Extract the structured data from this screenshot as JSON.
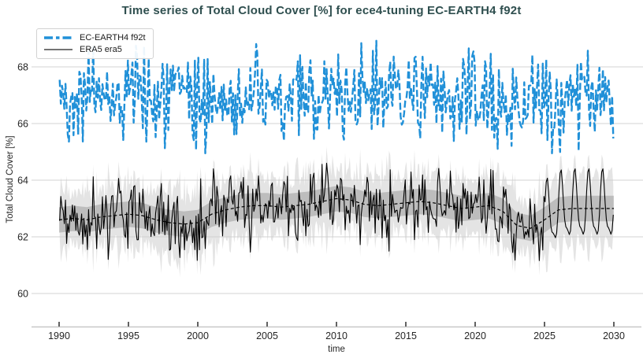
{
  "chart_data": {
    "type": "line",
    "title": "Time series of Total Cloud Cover [%] for ece4-tuning EC-EARTH4 f92t",
    "title_color": "#2F4F4F",
    "xlabel": "time",
    "ylabel": "Total Cloud Cover [%]",
    "xlim": [
      1988.0,
      2032.2
    ],
    "ylim": [
      58.8,
      69.5
    ],
    "x_ticks": [
      1990,
      1995,
      2000,
      2005,
      2010,
      2015,
      2020,
      2025,
      2030
    ],
    "x_tick_labels": [
      "1990",
      "1995",
      "2000",
      "2005",
      "2010",
      "2015",
      "2020",
      "2025",
      "2030"
    ],
    "y_ticks": [
      60,
      62,
      64,
      66,
      68
    ],
    "y_tick_labels": [
      "60",
      "62",
      "64",
      "66",
      "68"
    ],
    "grid": "horizontal",
    "grid_color": "#dcdcdc",
    "axis_line_color": "#c8c8c8",
    "tick_color": "#3a3a3a",
    "tick_label_color": "#262626",
    "legend": {
      "position": "upper-left",
      "entries": [
        {
          "label": "EC-EARTH4 f92t",
          "color": "#2090d8",
          "style": "dashed-thick"
        },
        {
          "label": "ERA5 era5",
          "color": "#000000",
          "style": "solid-thin"
        }
      ]
    },
    "series": [
      {
        "name": "EC-EARTH4 f92t",
        "color": "#2090d8",
        "line_style": "dashed",
        "line_width": 2.4,
        "frequency": "monthly",
        "x_start": 1990.0,
        "x_end": 2030.0,
        "mean": 66.9,
        "monthly_std": 0.8,
        "observed_range": [
          65.0,
          68.9
        ]
      },
      {
        "name": "ERA5 era5",
        "color": "#000000",
        "line_style": "solid",
        "line_width": 1.1,
        "frequency": "monthly",
        "x_start": 1990.0,
        "x_end": 2030.0,
        "monthly_std": 0.65,
        "observed_range": [
          60.7,
          64.6
        ],
        "running_mean_years": [
          1990,
          1991,
          1992,
          1993,
          1994,
          1995,
          1996,
          1997,
          1998,
          1999,
          2000,
          2001,
          2002,
          2003,
          2004,
          2005,
          2006,
          2007,
          2008,
          2009,
          2010,
          2011,
          2012,
          2013,
          2014,
          2015,
          2016,
          2017,
          2018,
          2019,
          2020,
          2021,
          2022,
          2023,
          2024,
          2025,
          2026,
          2027,
          2028,
          2029,
          2030
        ],
        "running_mean": [
          62.6,
          62.65,
          62.6,
          62.7,
          62.75,
          62.8,
          62.75,
          62.6,
          62.5,
          62.45,
          62.5,
          62.8,
          62.95,
          63.05,
          63.1,
          63.1,
          63.05,
          63.1,
          63.15,
          63.25,
          63.35,
          63.3,
          63.15,
          63.1,
          63.15,
          63.2,
          63.25,
          63.2,
          63.1,
          63.0,
          63.05,
          63.1,
          62.9,
          62.4,
          62.3,
          62.6,
          62.95,
          63.0,
          63.0,
          63.0,
          63.0
        ],
        "running_mean_style": "dashed",
        "inner_band_halfwidth": 0.45,
        "inner_band_color": "#8f8f8f",
        "outer_band_halfwidth_max": 1.9,
        "outer_band_color": "#c9c9c9",
        "regular_seasonal_cycle_after": 2025
      }
    ],
    "synthesis": {
      "points_per_year": 12,
      "seed_model": 42,
      "seed_obs": 913,
      "seed_env": 317,
      "obs_seasonal_amp": 0.35,
      "obs_noise_scale": 1.15,
      "model_noise_scale": 1.6,
      "model_slow_wiggle_amp": 0.15,
      "regular_cycle_amp": 1.1
    }
  }
}
